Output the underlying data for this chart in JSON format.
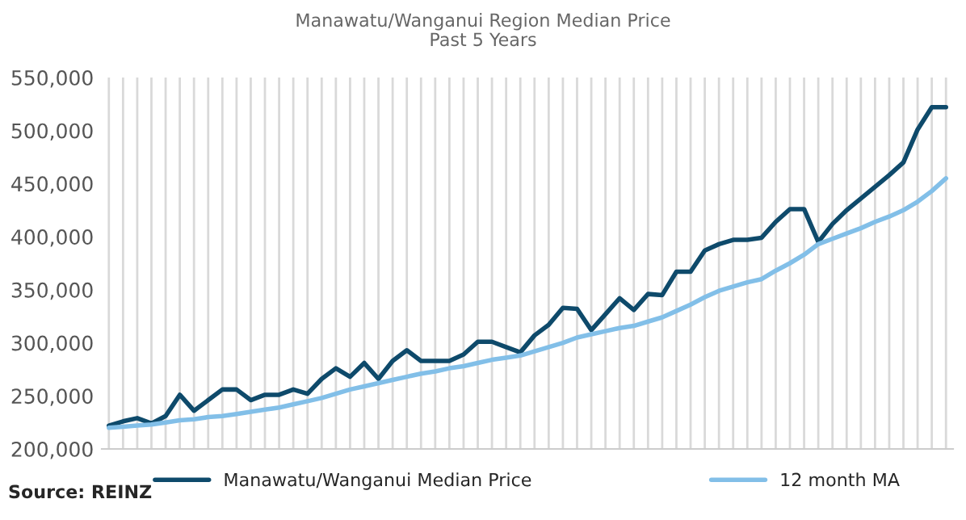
{
  "chart_data": {
    "type": "line",
    "title": "Manawatu/Wanganui Region Median Price",
    "subtitle": "Past 5 Years",
    "categories": [
      null,
      null,
      null,
      null,
      null,
      null,
      null,
      null,
      null,
      null,
      null,
      null,
      null,
      null,
      null,
      null,
      null,
      null,
      null,
      null,
      null,
      null,
      null,
      null,
      null,
      null,
      null,
      null,
      null,
      null,
      null,
      null,
      null,
      null,
      null,
      null,
      null,
      null,
      null,
      null,
      null,
      null,
      null,
      null,
      null,
      null,
      null,
      null,
      null,
      null,
      null,
      null,
      null,
      null,
      null,
      null,
      null,
      null,
      null,
      null
    ],
    "series": [
      {
        "name": "Manawatu/Wanganui Median Price",
        "color": "#0e4a6b",
        "values": [
          222000,
          226000,
          229000,
          224000,
          231000,
          251000,
          236000,
          246000,
          256000,
          256000,
          246000,
          251000,
          251000,
          256000,
          252000,
          266000,
          276000,
          268000,
          281000,
          266000,
          283000,
          293000,
          283000,
          283000,
          283000,
          289000,
          301000,
          301000,
          296000,
          291000,
          307000,
          317000,
          333000,
          332000,
          312000,
          327000,
          342000,
          331000,
          346000,
          345000,
          367000,
          367000,
          387000,
          393000,
          397000,
          397000,
          399000,
          414000,
          426000,
          426000,
          395000,
          412000,
          425000,
          436000,
          447000,
          458000,
          470000,
          501000,
          522000,
          522000
        ]
      },
      {
        "name": "12 month MA",
        "color": "#82bfe8",
        "values": [
          220000,
          221000,
          222000,
          223000,
          225000,
          227000,
          228000,
          230000,
          231000,
          233000,
          235000,
          237000,
          239000,
          242000,
          245000,
          248000,
          252000,
          256000,
          259000,
          262000,
          265000,
          268000,
          271000,
          273000,
          276000,
          278000,
          281000,
          284000,
          286000,
          288000,
          292000,
          296000,
          300000,
          305000,
          308000,
          311000,
          314000,
          316000,
          320000,
          324000,
          330000,
          336000,
          343000,
          349000,
          353000,
          357000,
          360000,
          368000,
          375000,
          383000,
          393000,
          398000,
          403000,
          408000,
          414000,
          419000,
          425000,
          433000,
          443000,
          455000
        ]
      }
    ],
    "ylim": [
      200000,
      550000
    ],
    "yticks": [
      {
        "value": 200000,
        "label": "200,000"
      },
      {
        "value": 250000,
        "label": "250,000"
      },
      {
        "value": 300000,
        "label": "300,000"
      },
      {
        "value": 350000,
        "label": "350,000"
      },
      {
        "value": 400000,
        "label": "400,000"
      },
      {
        "value": 450000,
        "label": "450,000"
      },
      {
        "value": 500000,
        "label": "500,000"
      },
      {
        "value": 550000,
        "label": "550,000"
      }
    ],
    "grid": "x",
    "legend": "bottom",
    "marker": "none",
    "line_style": "solid",
    "annotations": [
      "Source: REINZ"
    ]
  }
}
